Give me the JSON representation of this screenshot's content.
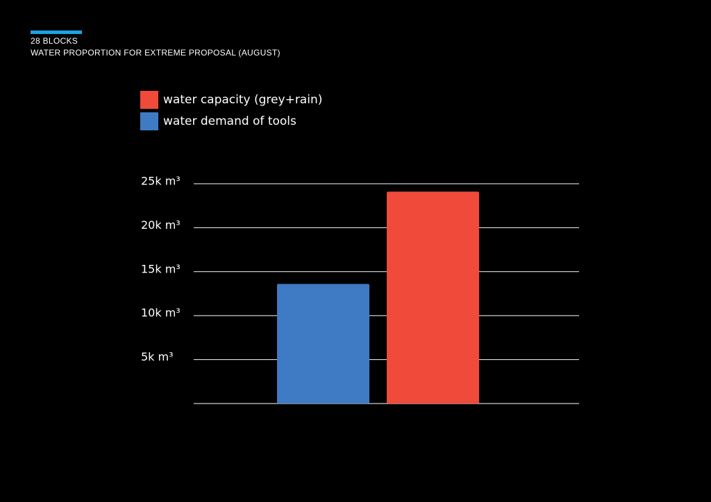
{
  "chart_data": {
    "type": "bar",
    "subtitle": "28 BLOCKS",
    "title": "WATER PROPORTION FOR EXTREME PROPOSAL (AUGUST)",
    "categories": [
      null
    ],
    "series": [
      {
        "name": "water capacity (grey+rain)",
        "color": "#f04a3a",
        "values": [
          24100
        ]
      },
      {
        "name": "water demand of tools",
        "color": "#3f7bc4",
        "values": [
          13600
        ]
      }
    ],
    "ylim": [
      0,
      25000
    ],
    "yticks": [
      {
        "value": 5000,
        "label": "5k  m³"
      },
      {
        "value": 10000,
        "label": "10k m³"
      },
      {
        "value": 15000,
        "label": "15k m³"
      },
      {
        "value": 20000,
        "label": "20k m³"
      },
      {
        "value": 25000,
        "label": "25k m³"
      }
    ],
    "grid": true
  }
}
